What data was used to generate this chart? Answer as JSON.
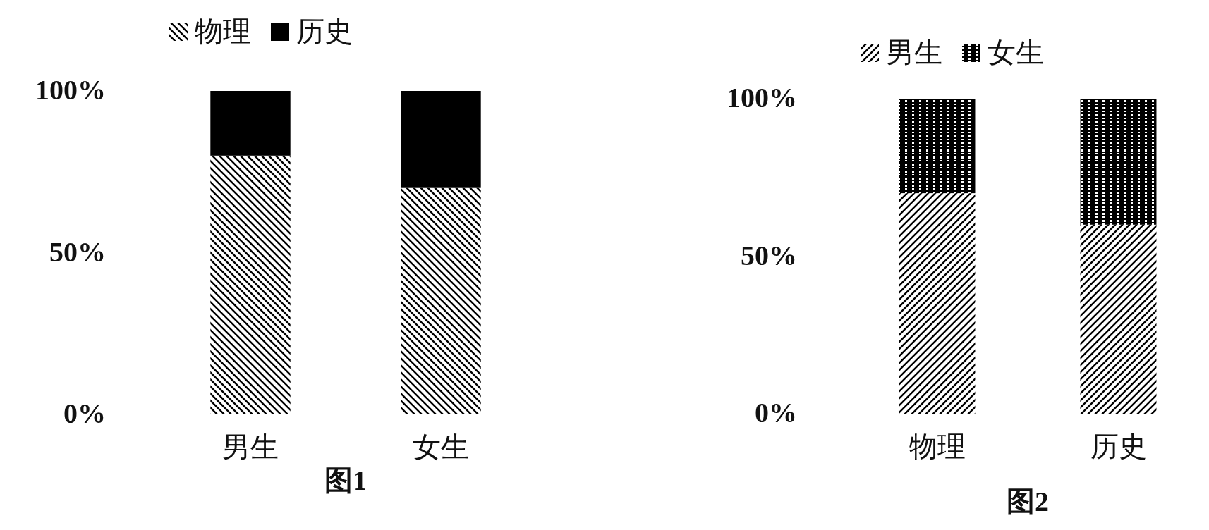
{
  "chart_data": [
    {
      "type": "bar",
      "stacked": true,
      "categories": [
        "男生",
        "女生"
      ],
      "series": [
        {
          "name": "物理",
          "color": "#000000",
          "values": [
            80,
            70
          ]
        },
        {
          "name": "历史",
          "color": "#000000",
          "values": [
            20,
            30
          ]
        }
      ],
      "ylim": [
        0,
        100
      ],
      "yticks": [
        {
          "value": 0,
          "label": "0%"
        },
        {
          "value": 50,
          "label": "50%"
        },
        {
          "value": 100,
          "label": "100%"
        }
      ],
      "legend": "top",
      "annotations": [
        "图1"
      ]
    },
    {
      "type": "bar",
      "stacked": true,
      "categories": [
        "物理",
        "历史"
      ],
      "series": [
        {
          "name": "男生",
          "color": "#000000",
          "values": [
            70,
            60
          ]
        },
        {
          "name": "女生",
          "color": "#000000",
          "values": [
            30,
            40
          ]
        }
      ],
      "ylim": [
        0,
        100
      ],
      "yticks": [
        {
          "value": 0,
          "label": "0%"
        },
        {
          "value": 50,
          "label": "50%"
        },
        {
          "value": 100,
          "label": "100%"
        }
      ],
      "legend": "top",
      "annotations": [
        "图2"
      ]
    }
  ]
}
